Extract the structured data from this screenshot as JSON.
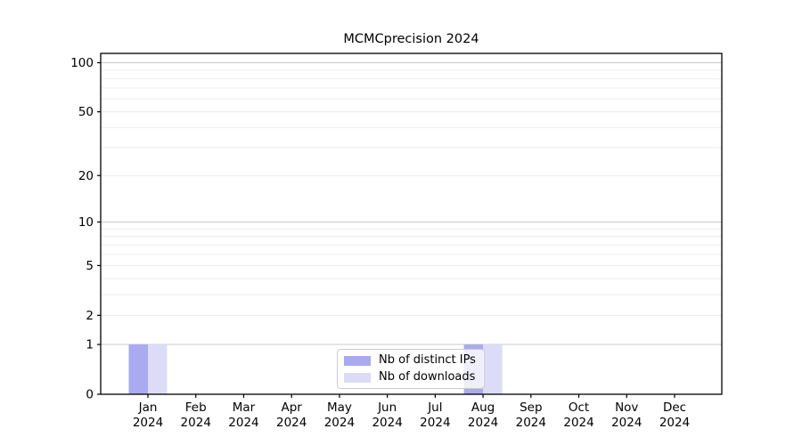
{
  "chart_data": {
    "type": "bar",
    "title": "MCMCprecision 2024",
    "year_label": "2024",
    "categories": [
      "Jan",
      "Feb",
      "Mar",
      "Apr",
      "May",
      "Jun",
      "Jul",
      "Aug",
      "Sep",
      "Oct",
      "Nov",
      "Dec"
    ],
    "series": [
      {
        "name": "Nb of distinct IPs",
        "color": "#aaaaf0",
        "values": [
          1,
          0,
          0,
          0,
          0,
          0,
          0,
          1,
          0,
          0,
          0,
          0
        ]
      },
      {
        "name": "Nb of downloads",
        "color": "#dcdcf8",
        "values": [
          1,
          0,
          0,
          0,
          0,
          0,
          0,
          1,
          0,
          0,
          0,
          0
        ]
      }
    ],
    "yscale": "log1p",
    "ylim": [
      0,
      114
    ],
    "yticks": [
      0,
      1,
      2,
      5,
      10,
      20,
      50,
      100
    ],
    "grid": {
      "major_values": [
        1,
        10,
        100
      ],
      "minor_values": [
        2,
        3,
        4,
        5,
        6,
        7,
        8,
        9,
        20,
        30,
        40,
        50,
        60,
        70,
        80,
        90
      ],
      "major_color": "#c9c9c9",
      "minor_color": "#ececec"
    },
    "legend": {
      "position": "lower center",
      "entries": [
        "Nb of distinct IPs",
        "Nb of downloads"
      ]
    },
    "axis_color": "#000000",
    "background": "#ffffff"
  }
}
